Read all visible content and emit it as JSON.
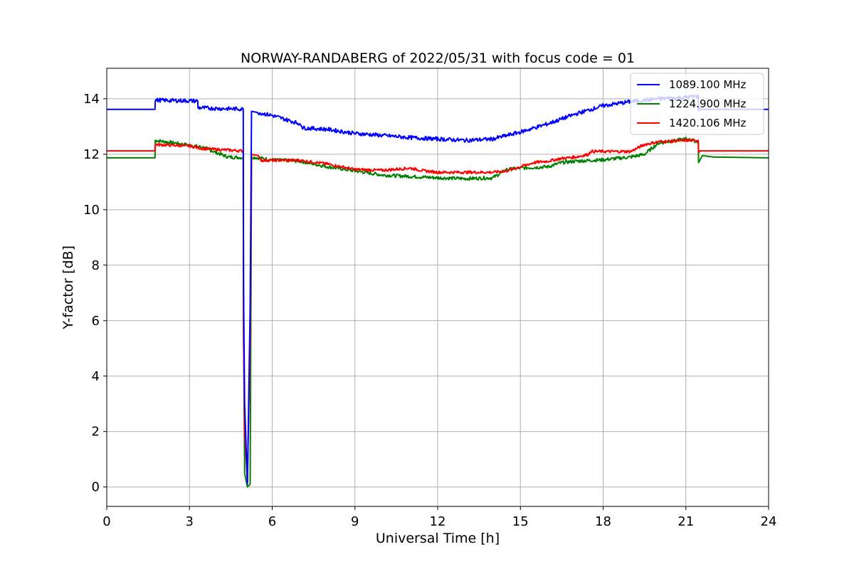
{
  "chart_data": {
    "type": "line",
    "title": "NORWAY-RANDABERG of 2022/05/31 with focus code = 01",
    "xlabel": "Universal Time [h]",
    "ylabel": "Y-factor [dB]",
    "xlim": [
      0,
      24
    ],
    "ylim": [
      -0.7,
      15.1
    ],
    "xticks": [
      0,
      3,
      6,
      9,
      12,
      15,
      18,
      21,
      24
    ],
    "yticks": [
      0,
      2,
      4,
      6,
      8,
      10,
      12,
      14
    ],
    "grid": true,
    "legend_position": "top-right",
    "series": [
      {
        "name": "1089.100 MHz",
        "color": "#0000ff",
        "noise": 0.07,
        "points": [
          [
            0,
            13.62
          ],
          [
            1.75,
            13.62
          ],
          [
            1.76,
            13.95
          ],
          [
            3.3,
            13.92
          ],
          [
            3.31,
            13.68
          ],
          [
            4.0,
            13.65
          ],
          [
            4.95,
            13.63
          ],
          [
            4.96,
            7.2
          ],
          [
            5.0,
            3.0
          ],
          [
            5.1,
            0.1
          ],
          [
            5.2,
            6.5
          ],
          [
            5.25,
            13.55
          ],
          [
            5.5,
            13.5
          ],
          [
            6.0,
            13.4
          ],
          [
            7.0,
            13.1
          ],
          [
            7.1,
            12.95
          ],
          [
            8.0,
            12.9
          ],
          [
            9.0,
            12.75
          ],
          [
            10.0,
            12.68
          ],
          [
            11.0,
            12.6
          ],
          [
            12.0,
            12.55
          ],
          [
            13.0,
            12.5
          ],
          [
            14.0,
            12.55
          ],
          [
            15.0,
            12.8
          ],
          [
            16.0,
            13.1
          ],
          [
            17.0,
            13.45
          ],
          [
            18.0,
            13.75
          ],
          [
            19.0,
            13.9
          ],
          [
            20.0,
            14.0
          ],
          [
            21.0,
            14.05
          ],
          [
            21.45,
            14.1
          ],
          [
            21.46,
            13.62
          ],
          [
            24,
            13.62
          ]
        ]
      },
      {
        "name": "1224.900 MHz",
        "color": "#008000",
        "noise": 0.06,
        "points": [
          [
            0,
            11.87
          ],
          [
            1.75,
            11.87
          ],
          [
            1.76,
            12.5
          ],
          [
            2.5,
            12.4
          ],
          [
            3.5,
            12.25
          ],
          [
            4.0,
            12.05
          ],
          [
            4.4,
            11.9
          ],
          [
            4.95,
            11.88
          ],
          [
            4.96,
            6.0
          ],
          [
            5.0,
            0.5
          ],
          [
            5.1,
            0.0
          ],
          [
            5.2,
            0.1
          ],
          [
            5.25,
            11.9
          ],
          [
            6.0,
            11.8
          ],
          [
            7.0,
            11.75
          ],
          [
            8.0,
            11.55
          ],
          [
            9.0,
            11.4
          ],
          [
            10.0,
            11.25
          ],
          [
            11.0,
            11.2
          ],
          [
            12.0,
            11.15
          ],
          [
            13.0,
            11.12
          ],
          [
            14.0,
            11.15
          ],
          [
            14.5,
            11.45
          ],
          [
            15.0,
            11.5
          ],
          [
            16.0,
            11.55
          ],
          [
            16.5,
            11.7
          ],
          [
            17.0,
            11.75
          ],
          [
            18.0,
            11.8
          ],
          [
            19.0,
            11.9
          ],
          [
            19.5,
            12.0
          ],
          [
            20.0,
            12.4
          ],
          [
            21.0,
            12.55
          ],
          [
            21.45,
            12.45
          ],
          [
            21.46,
            11.7
          ],
          [
            21.6,
            11.95
          ],
          [
            22.0,
            11.9
          ],
          [
            24,
            11.87
          ]
        ]
      },
      {
        "name": "1420.106 MHz",
        "color": "#ff0000",
        "noise": 0.05,
        "points": [
          [
            0,
            12.12
          ],
          [
            1.75,
            12.12
          ],
          [
            1.76,
            12.35
          ],
          [
            3.0,
            12.3
          ],
          [
            3.5,
            12.2
          ],
          [
            4.95,
            12.12
          ],
          [
            4.96,
            5.5
          ],
          [
            5.0,
            2.0
          ],
          [
            5.1,
            0.2
          ],
          [
            5.2,
            5.3
          ],
          [
            5.25,
            12.0
          ],
          [
            5.5,
            11.95
          ],
          [
            5.6,
            11.78
          ],
          [
            7.0,
            11.78
          ],
          [
            8.0,
            11.65
          ],
          [
            9.0,
            11.45
          ],
          [
            10.0,
            11.42
          ],
          [
            11.0,
            11.5
          ],
          [
            11.5,
            11.4
          ],
          [
            12.0,
            11.35
          ],
          [
            14.0,
            11.35
          ],
          [
            14.5,
            11.4
          ],
          [
            15.0,
            11.55
          ],
          [
            15.5,
            11.7
          ],
          [
            16.0,
            11.75
          ],
          [
            16.5,
            11.85
          ],
          [
            17.0,
            11.9
          ],
          [
            17.5,
            12.0
          ],
          [
            17.51,
            12.1
          ],
          [
            19.0,
            12.1
          ],
          [
            19.5,
            12.35
          ],
          [
            20.0,
            12.45
          ],
          [
            21.0,
            12.5
          ],
          [
            21.45,
            12.5
          ],
          [
            21.46,
            12.12
          ],
          [
            24,
            12.12
          ]
        ]
      }
    ]
  }
}
